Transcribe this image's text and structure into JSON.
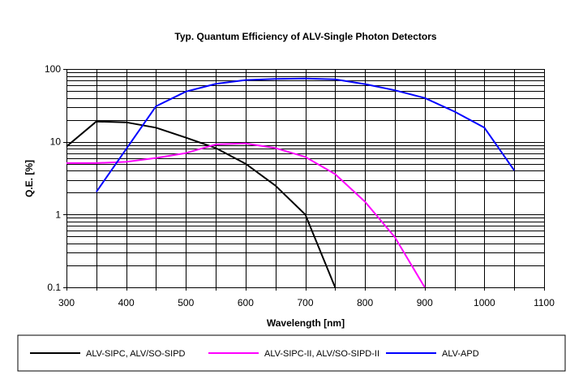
{
  "chart_data": {
    "type": "line",
    "title": "Typ. Quantum Efficiency of ALV-Single Photon Detectors",
    "xlabel": "Wavelength [nm]",
    "ylabel": "Q.E. [%]",
    "xlim": [
      300,
      1100
    ],
    "ylim": [
      0.1,
      100
    ],
    "yscale": "log",
    "grid": true,
    "legend_position": "bottom",
    "x_ticks": [
      "300",
      "400",
      "500",
      "600",
      "700",
      "800",
      "900",
      "1000",
      "1100"
    ],
    "y_ticks": [
      "0.1",
      "1",
      "10",
      "100"
    ],
    "series": [
      {
        "name": "ALV-SIPC, ALV/SO-SIPD",
        "color": "#000000",
        "x": [
          300,
          350,
          400,
          450,
          500,
          550,
          600,
          650,
          700,
          750
        ],
        "y": [
          8.6,
          19,
          18.5,
          15.6,
          11.4,
          8.2,
          5,
          2.5,
          1,
          0.1
        ]
      },
      {
        "name": "ALV-SIPC-II, ALV/SO-SIPD-II",
        "color": "#ff00ff",
        "x": [
          300,
          350,
          400,
          450,
          500,
          550,
          600,
          650,
          700,
          750,
          800,
          850,
          900
        ],
        "y": [
          5.1,
          5.1,
          5.3,
          6,
          7,
          9.2,
          9.5,
          8.2,
          6.2,
          3.6,
          1.5,
          0.49,
          0.1
        ]
      },
      {
        "name": "ALV-APD",
        "color": "#0000ff",
        "x": [
          350,
          450,
          500,
          550,
          600,
          650,
          700,
          750,
          800,
          850,
          900,
          950,
          1000,
          1050
        ],
        "y": [
          2.05,
          30.8,
          49,
          62.5,
          70.5,
          73,
          74,
          72,
          62,
          51,
          40,
          26,
          15.6,
          4.05
        ]
      }
    ]
  }
}
